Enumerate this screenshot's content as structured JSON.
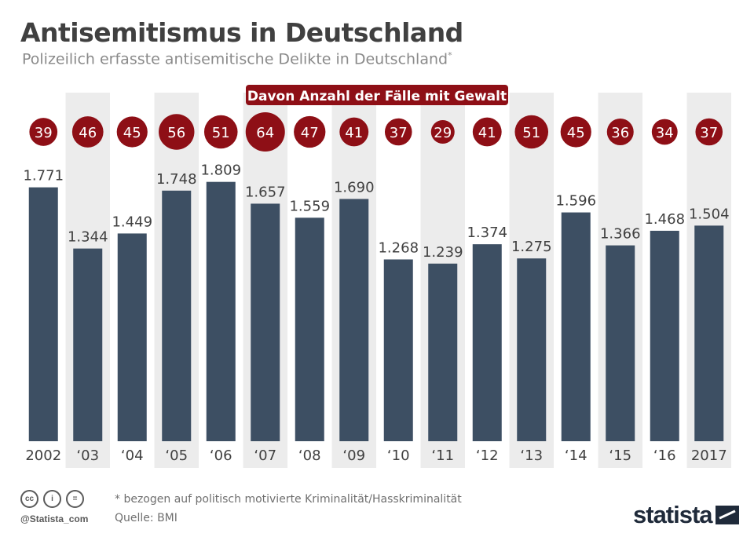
{
  "title": "Antisemitismus in Deutschland",
  "subtitle": "Polizeilich erfasste antisemitische Delikte in Deutschland",
  "subtitle_marker": "*",
  "colors": {
    "bar": "#3d4f63",
    "band": "#ececec",
    "circle": "#8e0f16",
    "text": "#404040"
  },
  "chart_data": {
    "type": "bar",
    "categories": [
      "2002",
      "‘03",
      "‘04",
      "‘05",
      "‘06",
      "‘07",
      "‘08",
      "‘09",
      "‘10",
      "‘11",
      "‘12",
      "‘13",
      "‘14",
      "‘15",
      "‘16",
      "2017"
    ],
    "series": [
      {
        "values": [
          1771,
          1344,
          1449,
          1748,
          1809,
          1657,
          1559,
          1690,
          1268,
          1239,
          1374,
          1275,
          1596,
          1366,
          1468,
          1504
        ],
        "labels": [
          "1.771",
          "1.344",
          "1.449",
          "1.748",
          "1.809",
          "1.657",
          "1.559",
          "1.690",
          "1.268",
          "1.239",
          "1.374",
          "1.275",
          "1.596",
          "1.366",
          "1.468",
          "1.504"
        ]
      },
      {
        "name": "Davon Anzahl der Fälle mit Gewalt",
        "values": [
          39,
          46,
          45,
          56,
          51,
          64,
          47,
          41,
          37,
          29,
          41,
          51,
          45,
          36,
          34,
          37
        ],
        "labels": [
          "39",
          "46",
          "45",
          "56",
          "51",
          "64",
          "47",
          "41",
          "37",
          "29",
          "41",
          "51",
          "45",
          "36",
          "34",
          "37"
        ]
      }
    ],
    "ylim": [
      0,
      2100
    ],
    "grid": false,
    "legend": "top-center"
  },
  "footnote": "* bezogen auf politisch motivierte Kriminalität/Hasskriminalität",
  "source": "Quelle: BMI",
  "footer": {
    "handle": "@Statista_com",
    "logo": "statista",
    "icons": [
      "cc-icon",
      "by-icon",
      "nd-icon"
    ]
  }
}
